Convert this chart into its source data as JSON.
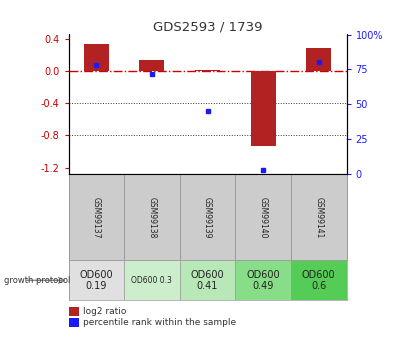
{
  "title": "GDS2593 / 1739",
  "samples": [
    "GSM99137",
    "GSM99138",
    "GSM99139",
    "GSM99140",
    "GSM99141"
  ],
  "log2_ratio": [
    0.33,
    0.13,
    0.01,
    -0.93,
    0.28
  ],
  "percentile_rank": [
    78,
    72,
    45,
    3,
    80
  ],
  "ylim": [
    -1.28,
    0.45
  ],
  "left_yticks": [
    0.4,
    0.0,
    -0.4,
    -0.8,
    -1.2
  ],
  "right_yticks": [
    100,
    75,
    50,
    25,
    0
  ],
  "bar_width": 0.45,
  "red_bar_color": "#b22222",
  "blue_marker_color": "#1a1aff",
  "zero_line_color": "#cc0000",
  "dotted_line_color": "#333333",
  "bg_color": "#ffffff",
  "growth_protocol_labels": [
    "OD600\n0.19",
    "OD600 0.3",
    "OD600\n0.41",
    "OD600\n0.49",
    "OD600\n0.6"
  ],
  "growth_protocol_colors": [
    "#e0e0e0",
    "#cceecc",
    "#b8e8b8",
    "#88dd88",
    "#55cc55"
  ],
  "growth_protocol_text_sizes": [
    7,
    5.5,
    7,
    7,
    7
  ],
  "title_color": "#333333",
  "left_tick_color": "#cc0000",
  "right_tick_color": "#1a1aff"
}
